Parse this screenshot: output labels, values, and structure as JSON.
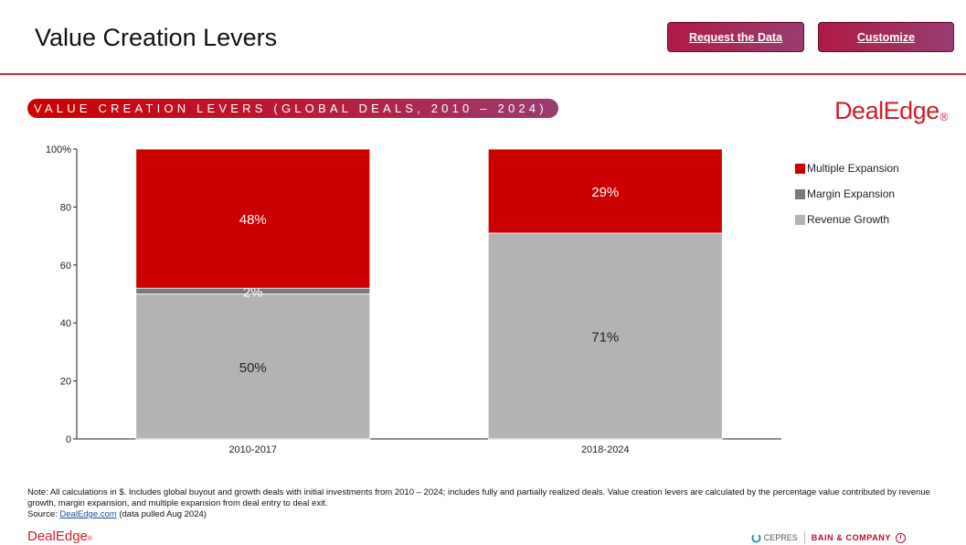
{
  "header": {
    "title": "Value Creation Levers",
    "request_button": "Request the Data",
    "customize_button": "Customize"
  },
  "brand": {
    "name": "DealEdge",
    "reg": "®"
  },
  "colors": {
    "brand_red": "#cc1f2a",
    "rule_red": "#cc2a36"
  },
  "chart_data": {
    "type": "bar",
    "stacked": true,
    "title": "VALUE CREATION LEVERS (GLOBAL DEALS, 2010 – 2024)",
    "categories": [
      "2010-2017",
      "2018-2024"
    ],
    "series": [
      {
        "name": "Revenue Growth",
        "values": [
          50,
          71
        ],
        "labels": [
          "50%",
          "71%"
        ],
        "color": "#b3b3b3",
        "label_color": "#222222"
      },
      {
        "name": "Margin Expansion",
        "values": [
          2,
          0
        ],
        "labels": [
          "2%",
          ""
        ],
        "color": "#7a7a7a",
        "label_color": "#ffffff"
      },
      {
        "name": "Multiple Expansion",
        "values": [
          48,
          29
        ],
        "labels": [
          "48%",
          "29%"
        ],
        "color": "#cc0000",
        "label_color": "#ffffff"
      }
    ],
    "legend_order": [
      "Multiple Expansion",
      "Margin Expansion",
      "Revenue Growth"
    ],
    "ylim": [
      0,
      100
    ],
    "yticks": [
      "0",
      "20",
      "40",
      "60",
      "80",
      "100%"
    ],
    "grid": false,
    "legend_position": "right"
  },
  "note": {
    "text": "Note: All calculations in $. Includes global buyout and growth deals with initial investments from 2010 – 2024; includes fully and partially realized deals. Value creation levers are calculated by the percentage value contributed by revenue growth, margin expansion, and multiple expansion from deal entry to deal exit.",
    "source_prefix": "Source: ",
    "source_link": "DealEdge.com",
    "source_suffix": " (data pulled Aug 2024)"
  },
  "footer": {
    "logo": "DealEdge",
    "reg": "®",
    "partner1": "CEPRES",
    "partner2": "BAIN & COMPANY"
  }
}
